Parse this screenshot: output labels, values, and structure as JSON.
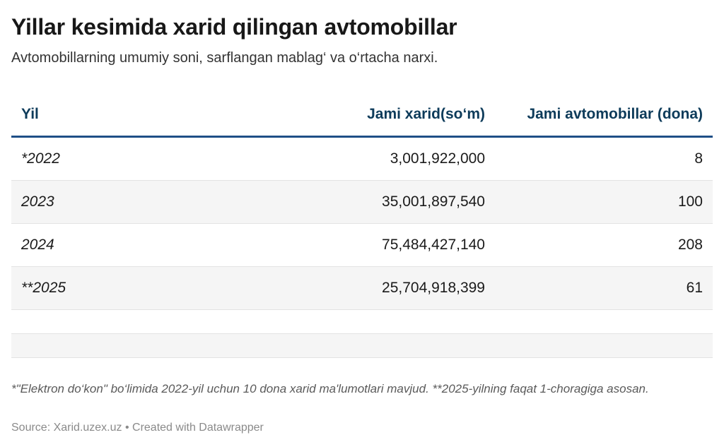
{
  "header": {
    "title": "Yillar kesimida xarid qilingan avtomobillar",
    "subtitle": "Avtomobillarning umumiy soni, sarflangan mablag‘ va o‘rtacha narxi."
  },
  "chart_data": {
    "type": "table",
    "columns": [
      "Yil",
      "Jami xarid(so‘m)",
      "Jami avtomobillar (dona)"
    ],
    "rows": [
      [
        "*2022",
        "3,001,922,000",
        "8"
      ],
      [
        "2023",
        "35,001,897,540",
        "100"
      ],
      [
        "2024",
        "75,484,427,140",
        "208"
      ],
      [
        "**2025",
        "25,704,918,399",
        "61"
      ]
    ]
  },
  "footer": {
    "note": "*\"Elektron do‘kon\" bo‘limida 2022-yil uchun 10 dona xarid ma'lumotlari mavjud. **2025-yilning faqat 1-choragiga asosan.",
    "source": "Source: Xarid.uzex.uz • Created with Datawrapper"
  },
  "colors": {
    "header_text": "#0d3b5a",
    "header_rule": "#1f4f87",
    "row_shade": "#f5f5f5"
  }
}
